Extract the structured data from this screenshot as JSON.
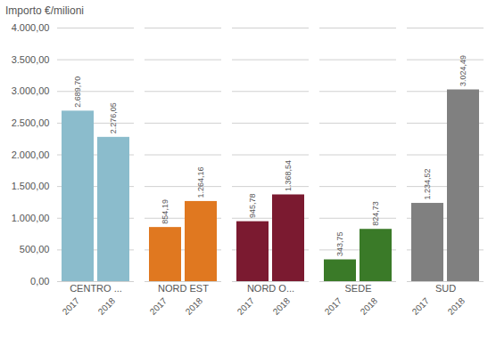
{
  "chart_data": {
    "type": "bar",
    "ylabel": "Importo €/milioni",
    "categories": [
      "CENTRO ...",
      "NORD EST",
      "NORD O...",
      "SEDE",
      "SUD"
    ],
    "series": [
      {
        "name": "2017",
        "values": [
          2689.7,
          854.19,
          945.78,
          343.75,
          1234.52
        ],
        "value_labels": [
          "2.689,70",
          "854,19",
          "945,78",
          "343,75",
          "1.234,52"
        ]
      },
      {
        "name": "2018",
        "values": [
          2276.05,
          1264.16,
          1368.54,
          824.73,
          3024.49
        ],
        "value_labels": [
          "2.276,05",
          "1.264,16",
          "1.368,54",
          "824,73",
          "3.024,49"
        ]
      }
    ],
    "colors": [
      "#8bbccc",
      "#e07820",
      "#7b1a30",
      "#3a7a28",
      "#808080"
    ],
    "ylim": [
      0,
      4000
    ],
    "yticks": [
      {
        "value": 0,
        "label": "0,00"
      },
      {
        "value": 500,
        "label": "500,00"
      },
      {
        "value": 1000,
        "label": "1.000,00"
      },
      {
        "value": 1500,
        "label": "1.500,00"
      },
      {
        "value": 2000,
        "label": "2.000,00"
      },
      {
        "value": 2500,
        "label": "2.500,00"
      },
      {
        "value": 3000,
        "label": "3.000,00"
      },
      {
        "value": 3500,
        "label": "3.500,00"
      },
      {
        "value": 4000,
        "label": "4.000,00"
      }
    ],
    "grid": true,
    "data_labels": true
  }
}
